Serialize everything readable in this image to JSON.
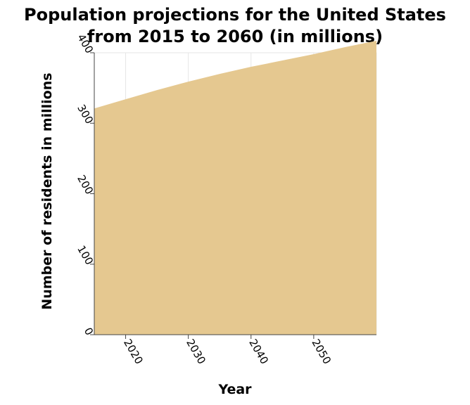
{
  "chart_data": {
    "type": "area",
    "title": "Population projections for the United States from 2015 to 2060 (in millions)",
    "title_lines": [
      "Population projections for the United States",
      "from 2015 to 2060 (in millions)"
    ],
    "xlabel": "Year",
    "ylabel": "Number of residents in millions",
    "xlim": [
      2015,
      2060
    ],
    "ylim": [
      0,
      400
    ],
    "x_ticks": [
      2020,
      2030,
      2040,
      2050
    ],
    "y_ticks": [
      0,
      100,
      200,
      300,
      400
    ],
    "x_tick_labels": [
      "2020",
      "2030",
      "2040",
      "2050"
    ],
    "y_tick_labels": [
      "0",
      "100",
      "200",
      "300",
      "400"
    ],
    "grid": true,
    "series": [
      {
        "name": "Population",
        "color": "#e5c890",
        "x": [
          2015,
          2020,
          2025,
          2030,
          2035,
          2040,
          2045,
          2050,
          2055,
          2060
        ],
        "values": [
          321,
          334,
          347,
          359,
          370,
          380,
          389,
          398,
          408,
          417
        ]
      }
    ]
  }
}
